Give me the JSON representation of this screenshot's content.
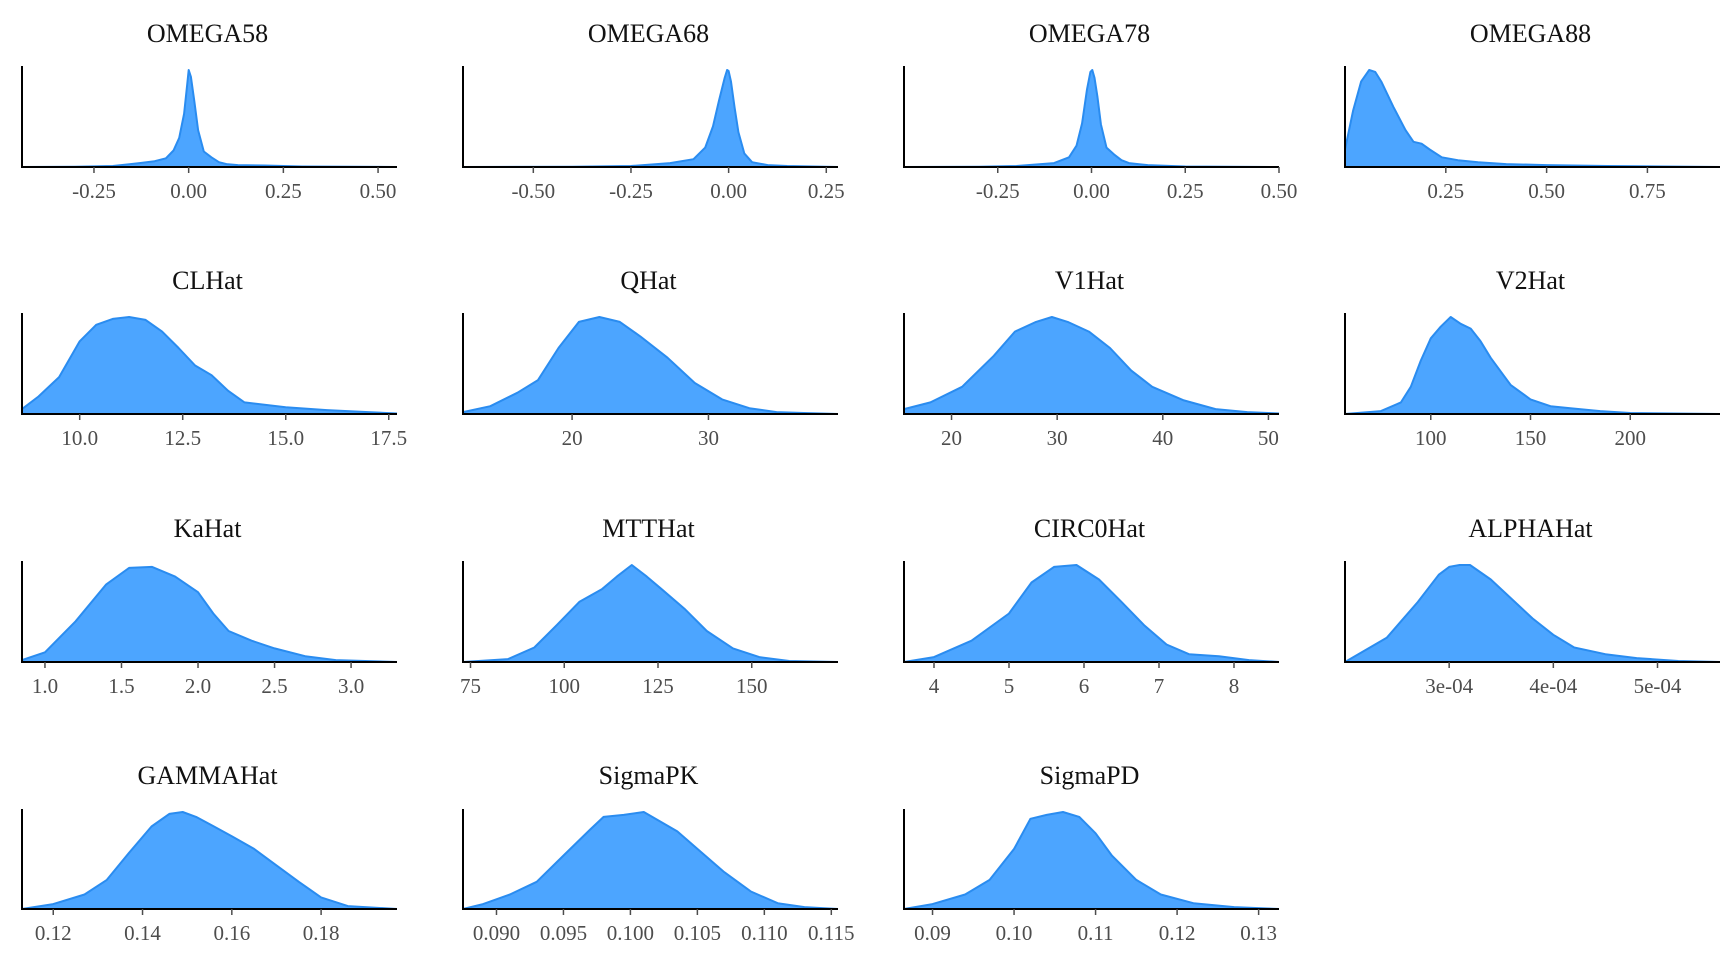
{
  "figure": {
    "colors": {
      "fill": "#4CA5FF",
      "stroke": "#2A8CF0",
      "axis": "#000000",
      "tick": "#4d4d4d",
      "title": "#111111"
    }
  },
  "chart_data": [
    {
      "type": "area",
      "title": "OMEGA58",
      "xlabel": "",
      "ylabel": "",
      "xlim": [
        -0.44,
        0.55
      ],
      "ticks": [
        -0.25,
        0.0,
        0.25,
        0.5
      ],
      "tick_labels": [
        "-0.25",
        "0.00",
        "0.25",
        "0.50"
      ],
      "x": [
        -0.44,
        -0.3,
        -0.2,
        -0.13,
        -0.09,
        -0.06,
        -0.04,
        -0.025,
        -0.012,
        -0.004,
        0.0,
        0.006,
        0.015,
        0.025,
        0.04,
        0.06,
        0.08,
        0.1,
        0.13,
        0.2,
        0.3,
        0.55
      ],
      "density": [
        0.0,
        0.003,
        0.01,
        0.04,
        0.06,
        0.09,
        0.17,
        0.3,
        0.55,
        0.85,
        1.0,
        0.93,
        0.68,
        0.38,
        0.16,
        0.1,
        0.05,
        0.03,
        0.02,
        0.015,
        0.005,
        0.0
      ]
    },
    {
      "type": "area",
      "title": "OMEGA68",
      "xlabel": "",
      "ylabel": "",
      "xlim": [
        -0.68,
        0.28
      ],
      "ticks": [
        -0.5,
        -0.25,
        0.0,
        0.25
      ],
      "tick_labels": [
        "-0.50",
        "-0.25",
        "0.00",
        "0.25"
      ],
      "x": [
        -0.68,
        -0.4,
        -0.25,
        -0.15,
        -0.09,
        -0.06,
        -0.04,
        -0.025,
        -0.01,
        -0.004,
        0.0,
        0.006,
        0.015,
        0.025,
        0.04,
        0.06,
        0.1,
        0.15,
        0.28
      ],
      "density": [
        0.0,
        0.003,
        0.01,
        0.04,
        0.08,
        0.2,
        0.42,
        0.68,
        0.92,
        1.0,
        0.99,
        0.88,
        0.62,
        0.36,
        0.14,
        0.05,
        0.02,
        0.01,
        0.0
      ]
    },
    {
      "type": "area",
      "title": "OMEGA78",
      "xlabel": "",
      "ylabel": "",
      "xlim": [
        -0.5,
        0.5
      ],
      "ticks": [
        -0.25,
        0.0,
        0.25,
        0.5
      ],
      "tick_labels": [
        "-0.25",
        "0.00",
        "0.25",
        "0.50"
      ],
      "x": [
        -0.5,
        -0.3,
        -0.2,
        -0.1,
        -0.06,
        -0.04,
        -0.025,
        -0.012,
        -0.003,
        0.002,
        0.008,
        0.016,
        0.025,
        0.04,
        0.06,
        0.08,
        0.1,
        0.15,
        0.25,
        0.5
      ],
      "density": [
        0.0,
        0.003,
        0.01,
        0.04,
        0.1,
        0.22,
        0.45,
        0.8,
        0.98,
        1.0,
        0.92,
        0.72,
        0.44,
        0.2,
        0.13,
        0.07,
        0.04,
        0.02,
        0.005,
        0.0
      ]
    },
    {
      "type": "area",
      "title": "OMEGA88",
      "xlabel": "",
      "ylabel": "",
      "xlim": [
        0.0,
        0.93
      ],
      "ticks": [
        0.25,
        0.5,
        0.75
      ],
      "tick_labels": [
        "0.25",
        "0.50",
        "0.75"
      ],
      "x": [
        0.0,
        0.02,
        0.04,
        0.06,
        0.075,
        0.09,
        0.12,
        0.15,
        0.17,
        0.19,
        0.21,
        0.24,
        0.28,
        0.33,
        0.4,
        0.5,
        0.65,
        0.93
      ],
      "density": [
        0.18,
        0.58,
        0.88,
        1.0,
        0.98,
        0.88,
        0.62,
        0.38,
        0.26,
        0.24,
        0.18,
        0.1,
        0.07,
        0.05,
        0.03,
        0.02,
        0.01,
        0.0
      ]
    },
    {
      "type": "area",
      "title": "CLHat",
      "xlabel": "",
      "ylabel": "",
      "xlim": [
        8.6,
        17.7
      ],
      "ticks": [
        10.0,
        12.5,
        15.0,
        17.5
      ],
      "tick_labels": [
        "10.0",
        "12.5",
        "15.0",
        "17.5"
      ],
      "x": [
        8.6,
        9.0,
        9.5,
        10.0,
        10.4,
        10.8,
        11.2,
        11.6,
        12.0,
        12.4,
        12.8,
        13.2,
        13.6,
        14.0,
        15.0,
        16.0,
        17.0,
        17.7
      ],
      "density": [
        0.05,
        0.18,
        0.38,
        0.75,
        0.92,
        0.98,
        1.0,
        0.97,
        0.85,
        0.68,
        0.5,
        0.4,
        0.24,
        0.12,
        0.07,
        0.04,
        0.02,
        0.005
      ]
    },
    {
      "type": "area",
      "title": "QHat",
      "xlabel": "",
      "ylabel": "",
      "xlim": [
        12.0,
        39.5
      ],
      "ticks": [
        20,
        30
      ],
      "tick_labels": [
        "20",
        "30"
      ],
      "x": [
        12.0,
        14.0,
        16.0,
        17.5,
        19.0,
        20.5,
        22.0,
        23.5,
        25.0,
        27.0,
        29.0,
        31.0,
        33.0,
        35.0,
        37.0,
        39.5
      ],
      "density": [
        0.02,
        0.08,
        0.22,
        0.35,
        0.68,
        0.95,
        1.0,
        0.95,
        0.8,
        0.58,
        0.32,
        0.15,
        0.06,
        0.02,
        0.01,
        0.0
      ]
    },
    {
      "type": "area",
      "title": "V1Hat",
      "xlabel": "",
      "ylabel": "",
      "xlim": [
        15.5,
        51.0
      ],
      "ticks": [
        20,
        30,
        40,
        50
      ],
      "tick_labels": [
        "20",
        "30",
        "40",
        "50"
      ],
      "x": [
        15.5,
        18.0,
        21.0,
        24.0,
        26.0,
        28.0,
        29.5,
        31.0,
        33.0,
        35.0,
        37.0,
        39.0,
        42.0,
        45.0,
        48.0,
        51.0
      ],
      "density": [
        0.05,
        0.12,
        0.28,
        0.6,
        0.85,
        0.95,
        1.0,
        0.95,
        0.85,
        0.68,
        0.45,
        0.28,
        0.14,
        0.05,
        0.02,
        0.005
      ]
    },
    {
      "type": "area",
      "title": "V2Hat",
      "xlabel": "",
      "ylabel": "",
      "xlim": [
        57.0,
        245.0
      ],
      "ticks": [
        100,
        150,
        200
      ],
      "tick_labels": [
        "100",
        "150",
        "200"
      ],
      "x": [
        57.0,
        75.0,
        85.0,
        90.0,
        95.0,
        100.0,
        105.0,
        110.0,
        115.0,
        120.0,
        125.0,
        130.0,
        140.0,
        150.0,
        160.0,
        170.0,
        185.0,
        200.0,
        245.0
      ],
      "density": [
        0.0,
        0.03,
        0.12,
        0.28,
        0.55,
        0.78,
        0.9,
        1.0,
        0.93,
        0.88,
        0.75,
        0.58,
        0.3,
        0.15,
        0.08,
        0.06,
        0.03,
        0.01,
        0.0
      ]
    },
    {
      "type": "area",
      "title": "KaHat",
      "xlabel": "",
      "ylabel": "",
      "xlim": [
        0.85,
        3.3
      ],
      "ticks": [
        1.0,
        1.5,
        2.0,
        2.5,
        3.0
      ],
      "tick_labels": [
        "1.0",
        "1.5",
        "2.0",
        "2.5",
        "3.0"
      ],
      "x": [
        0.85,
        1.0,
        1.2,
        1.4,
        1.55,
        1.7,
        1.85,
        2.0,
        2.1,
        2.2,
        2.35,
        2.5,
        2.7,
        2.9,
        3.3
      ],
      "density": [
        0.02,
        0.1,
        0.42,
        0.8,
        0.97,
        0.98,
        0.88,
        0.72,
        0.5,
        0.32,
        0.22,
        0.14,
        0.06,
        0.02,
        0.0
      ]
    },
    {
      "type": "area",
      "title": "MTTHat",
      "xlabel": "",
      "ylabel": "",
      "xlim": [
        73.0,
        173.0
      ],
      "ticks": [
        75,
        100,
        125,
        150
      ],
      "tick_labels": [
        "75",
        "100",
        "125",
        "150"
      ],
      "x": [
        73.0,
        85.0,
        92.0,
        98.0,
        104.0,
        110.0,
        114.0,
        118.0,
        122.0,
        126.0,
        132.0,
        138.0,
        145.0,
        152.0,
        160.0,
        173.0
      ],
      "density": [
        0.0,
        0.03,
        0.15,
        0.38,
        0.62,
        0.75,
        0.88,
        1.0,
        0.88,
        0.75,
        0.55,
        0.32,
        0.14,
        0.05,
        0.01,
        0.0
      ]
    },
    {
      "type": "area",
      "title": "CIRC0Hat",
      "xlabel": "",
      "ylabel": "",
      "xlim": [
        3.6,
        8.6
      ],
      "ticks": [
        4,
        5,
        6,
        7,
        8
      ],
      "tick_labels": [
        "4",
        "5",
        "6",
        "7",
        "8"
      ],
      "x": [
        3.6,
        4.0,
        4.5,
        5.0,
        5.3,
        5.6,
        5.9,
        6.2,
        6.5,
        6.8,
        7.1,
        7.4,
        7.8,
        8.2,
        8.6
      ],
      "density": [
        0.0,
        0.05,
        0.22,
        0.5,
        0.82,
        0.98,
        1.0,
        0.85,
        0.62,
        0.38,
        0.18,
        0.08,
        0.06,
        0.02,
        0.0
      ]
    },
    {
      "type": "area",
      "title": "ALPHAHat",
      "xlabel": "",
      "ylabel": "",
      "xlim": [
        0.0002,
        0.00056
      ],
      "ticks": [
        0.0003,
        0.0004,
        0.0005
      ],
      "tick_labels": [
        "3e-04",
        "4e-04",
        "5e-04"
      ],
      "x": [
        0.0002,
        0.00024,
        0.00027,
        0.00029,
        0.0003,
        0.00031,
        0.00032,
        0.00034,
        0.00036,
        0.00038,
        0.0004,
        0.00042,
        0.00045,
        0.00048,
        0.00052,
        0.00056
      ],
      "density": [
        0.0,
        0.25,
        0.62,
        0.9,
        0.98,
        1.0,
        1.0,
        0.85,
        0.65,
        0.45,
        0.28,
        0.15,
        0.08,
        0.04,
        0.01,
        0.0
      ]
    },
    {
      "type": "area",
      "title": "GAMMAHat",
      "xlabel": "",
      "ylabel": "",
      "xlim": [
        0.113,
        0.197
      ],
      "ticks": [
        0.12,
        0.14,
        0.16,
        0.18
      ],
      "tick_labels": [
        "0.12",
        "0.14",
        "0.16",
        "0.18"
      ],
      "x": [
        0.113,
        0.12,
        0.127,
        0.132,
        0.137,
        0.142,
        0.146,
        0.149,
        0.152,
        0.156,
        0.16,
        0.165,
        0.17,
        0.175,
        0.18,
        0.186,
        0.197
      ],
      "density": [
        0.0,
        0.05,
        0.15,
        0.3,
        0.58,
        0.85,
        0.98,
        1.0,
        0.95,
        0.85,
        0.75,
        0.62,
        0.45,
        0.28,
        0.12,
        0.03,
        0.0
      ]
    },
    {
      "type": "area",
      "title": "SigmaPK",
      "xlabel": "",
      "ylabel": "",
      "xlim": [
        0.0875,
        0.1155
      ],
      "ticks": [
        0.09,
        0.095,
        0.1,
        0.105,
        0.11,
        0.115
      ],
      "tick_labels": [
        "0.090",
        "0.095",
        "0.100",
        "0.105",
        "0.110",
        "0.115"
      ],
      "x": [
        0.0875,
        0.089,
        0.091,
        0.093,
        0.095,
        0.097,
        0.098,
        0.0995,
        0.101,
        0.102,
        0.1035,
        0.105,
        0.107,
        0.109,
        0.111,
        0.113,
        0.1155
      ],
      "density": [
        0.0,
        0.05,
        0.15,
        0.28,
        0.55,
        0.82,
        0.95,
        0.97,
        1.0,
        0.92,
        0.8,
        0.62,
        0.38,
        0.18,
        0.06,
        0.02,
        0.0
      ]
    },
    {
      "type": "area",
      "title": "SigmaPD",
      "xlabel": "",
      "ylabel": "",
      "xlim": [
        0.0865,
        0.1325
      ],
      "ticks": [
        0.09,
        0.1,
        0.11,
        0.12,
        0.13
      ],
      "tick_labels": [
        "0.09",
        "0.10",
        "0.11",
        "0.12",
        "0.13"
      ],
      "x": [
        0.0865,
        0.09,
        0.094,
        0.097,
        0.1,
        0.102,
        0.104,
        0.106,
        0.108,
        0.11,
        0.112,
        0.115,
        0.118,
        0.122,
        0.127,
        0.1325
      ],
      "density": [
        0.0,
        0.05,
        0.15,
        0.3,
        0.62,
        0.93,
        0.97,
        1.0,
        0.95,
        0.78,
        0.55,
        0.3,
        0.15,
        0.06,
        0.02,
        0.0
      ]
    }
  ]
}
